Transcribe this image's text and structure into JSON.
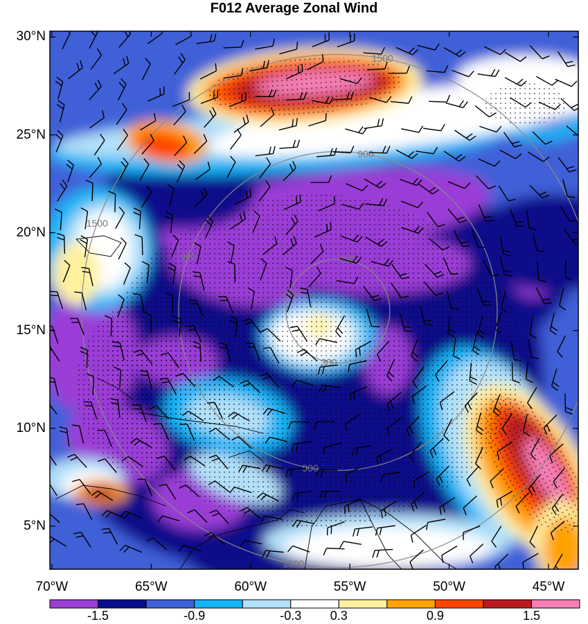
{
  "title": "F012 Average Zonal Wind",
  "map": {
    "lat_labels": [
      "30°N",
      "25°N",
      "20°N",
      "15°N",
      "10°N",
      "5°N"
    ],
    "lat_values": [
      30,
      25,
      20,
      15,
      10,
      5
    ],
    "lon_labels": [
      "70°W",
      "65°W",
      "60°W",
      "55°W",
      "50°W",
      "45°W"
    ],
    "lon_values": [
      -70,
      -65,
      -60,
      -55,
      -50,
      -45
    ],
    "lat_range": [
      2.8,
      30.3
    ],
    "lon_range": [
      -70.1,
      -43.5
    ],
    "range_rings": [
      {
        "radius_km": 300,
        "label": "300"
      },
      {
        "radius_km": 900,
        "label": "900"
      },
      {
        "radius_km": 1500,
        "label": "1500"
      }
    ],
    "storm_center": {
      "lon": -55.6,
      "lat": 16.0
    },
    "stipple": "dotted shading over significant regions"
  },
  "colorbar": {
    "colors": [
      "#9a3ed6",
      "#080d8a",
      "#3f60d8",
      "#14b4f5",
      "#b2e0f9",
      "#ffffff",
      "#fff0a0",
      "#ffa200",
      "#ff4400",
      "#b81a20",
      "#f57fb5"
    ],
    "tick_labels": [
      "-1.5",
      "-0.9",
      "-0.3",
      "0.3",
      "0.9",
      "1.5"
    ],
    "tick_values": [
      -1.5,
      -0.9,
      -0.3,
      0.3,
      0.9,
      1.5
    ],
    "levels": [
      -1.8,
      -1.5,
      -1.2,
      -0.9,
      -0.6,
      -0.3,
      0.3,
      0.6,
      0.9,
      1.2,
      1.5,
      1.8
    ]
  }
}
